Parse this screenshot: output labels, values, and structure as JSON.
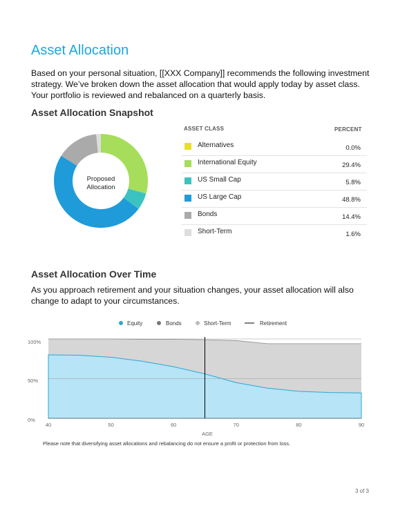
{
  "page": {
    "title": "Asset Allocation",
    "intro": "Based on your personal situation, [[XXX Company]] recommends the following investment strategy. We’ve broken down the asset allocation that would apply today by asset class. Your portfolio is reviewed and rebalanced on a quarterly basis.",
    "snapshot_heading": "Asset Allocation Snapshot",
    "over_time_heading": "Asset Allocation Over Time",
    "over_time_text": "As you approach retirement and your situation changes,  your asset allocation will also change to adapt to your circumstances.",
    "disclaimer": "Please note that diversifying asset allocations and rebalancing do not ensure a profit or protection from loss.",
    "page_number": "3  of  3"
  },
  "donut": {
    "center_line1": "Proposed",
    "center_line2": "Allocation"
  },
  "table": {
    "col_class": "ASSET CLASS",
    "col_percent": "PERCENT",
    "rows": [
      {
        "label": "Alternatives",
        "percent": "0.0%",
        "color": "#e8df2a"
      },
      {
        "label": "International Equity",
        "percent": "29.4%",
        "color": "#a6dd5a"
      },
      {
        "label": "US Small Cap",
        "percent": "5.8%",
        "color": "#3cc3c1"
      },
      {
        "label": "US Large Cap",
        "percent": "48.8%",
        "color": "#1f9bd9"
      },
      {
        "label": "Bonds",
        "percent": "14.4%",
        "color": "#aaaaaa"
      },
      {
        "label": "Short-Term",
        "percent": "1.6%",
        "color": "#dddddd"
      }
    ]
  },
  "chart_data": [
    {
      "type": "pie",
      "title": "",
      "categories": [
        "Alternatives",
        "International Equity",
        "US Small Cap",
        "US Large Cap",
        "Bonds",
        "Short-Term"
      ],
      "values": [
        0.0,
        29.4,
        5.8,
        48.8,
        14.4,
        1.6
      ],
      "colors": [
        "#e8df2a",
        "#a6dd5a",
        "#3cc3c1",
        "#1f9bd9",
        "#aaaaaa",
        "#dddddd"
      ]
    },
    {
      "type": "area",
      "title": "",
      "xlabel": "AGE",
      "ylabel": "",
      "xlim": [
        40,
        90
      ],
      "ylim": [
        0,
        100
      ],
      "x_ticks": [
        "40",
        "50",
        "60",
        "70",
        "80",
        "90"
      ],
      "y_ticks": [
        "0%",
        "50%",
        "100%"
      ],
      "grid": true,
      "legend_position": "top",
      "legend": [
        {
          "name": "Equity",
          "color": "#29a6d6"
        },
        {
          "name": "Bonds",
          "color": "#777777"
        },
        {
          "name": "Short-Term",
          "color": "#bbbbbb"
        },
        {
          "name": "Retirement",
          "color": "#000000"
        }
      ],
      "series": [
        {
          "name": "Equity",
          "x": [
            40,
            45,
            50,
            55,
            60,
            65,
            70,
            75,
            80,
            85,
            90
          ],
          "values": [
            80,
            79.5,
            77,
            72,
            65,
            56,
            45,
            38,
            34,
            32.5,
            32
          ]
        },
        {
          "name": "Bonds",
          "x": [
            40,
            45,
            50,
            55,
            60,
            65,
            70,
            75,
            80,
            85,
            90
          ],
          "values": [
            18,
            18.5,
            21,
            25.5,
            31.5,
            39,
            48,
            54,
            58,
            59.5,
            60
          ]
        },
        {
          "name": "Short-Term",
          "x": [
            40,
            45,
            50,
            55,
            60,
            65,
            70,
            75,
            80,
            85,
            90
          ],
          "values": [
            2,
            2,
            2,
            2,
            3,
            4,
            5,
            2,
            2,
            2,
            2
          ]
        }
      ],
      "retirement_age": 65
    }
  ]
}
